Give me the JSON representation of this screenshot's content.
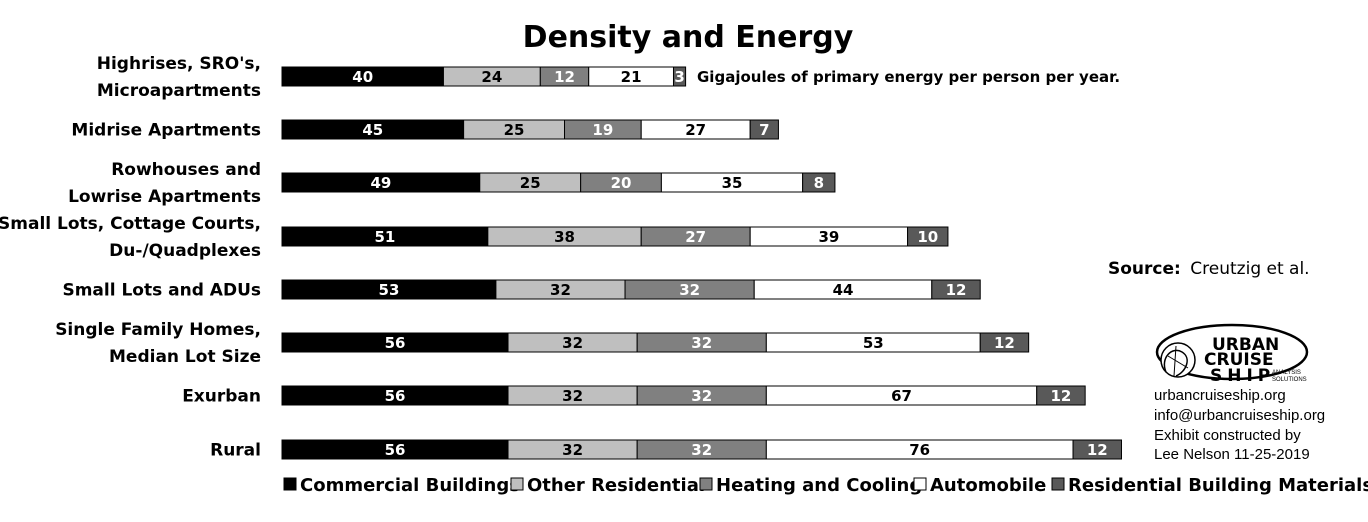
{
  "chart_data": {
    "type": "bar",
    "orientation": "horizontal",
    "stacked": true,
    "title": "Density and Energy",
    "note": "Gigajoules of primary energy per person per year.",
    "categories": [
      [
        "Highrises, SRO's,",
        "Microapartments"
      ],
      [
        "Midrise Apartments"
      ],
      [
        "Rowhouses and",
        "Lowrise Apartments"
      ],
      [
        "Small Lots, Cottage Courts,",
        "Du-/Quadplexes"
      ],
      [
        "Small Lots and ADUs"
      ],
      [
        "Single Family Homes,",
        "Median Lot Size"
      ],
      [
        "Exurban"
      ],
      [
        "Rural"
      ]
    ],
    "series": [
      {
        "name": "Commercial Buildings",
        "color": "#000000",
        "text_color": "#ffffff",
        "values": [
          40,
          45,
          49,
          51,
          53,
          56,
          56,
          56
        ]
      },
      {
        "name": "Other Residential",
        "color": "#bfbfbf",
        "text_color": "#000000",
        "values": [
          24,
          25,
          25,
          38,
          32,
          32,
          32,
          32
        ]
      },
      {
        "name": "Heating and Cooling",
        "color": "#808080",
        "text_color": "#ffffff",
        "values": [
          12,
          19,
          20,
          27,
          32,
          32,
          32,
          32
        ]
      },
      {
        "name": "Automobile",
        "color": "#ffffff",
        "text_color": "#000000",
        "values": [
          21,
          27,
          35,
          39,
          44,
          53,
          67,
          76
        ]
      },
      {
        "name": "Residential Building Materials",
        "color": "#595959",
        "text_color": "#ffffff",
        "values": [
          3,
          7,
          8,
          10,
          12,
          12,
          12,
          12
        ]
      }
    ],
    "legend_position": "bottom",
    "grid": false,
    "xlim": [
      0,
      210
    ]
  },
  "source": {
    "label": "Source:",
    "text": "Creutzig et al."
  },
  "logo": {
    "line1": "URBAN",
    "line2": "CRUISE",
    "line3": "SHIP",
    "tagline1": "ANALYSIS",
    "tagline2": "SOLUTIONS"
  },
  "credits": [
    "urbancruiseship.org",
    "info@urbancruiseship.org",
    "Exhibit constructed by",
    "Lee Nelson 11-25-2019"
  ]
}
